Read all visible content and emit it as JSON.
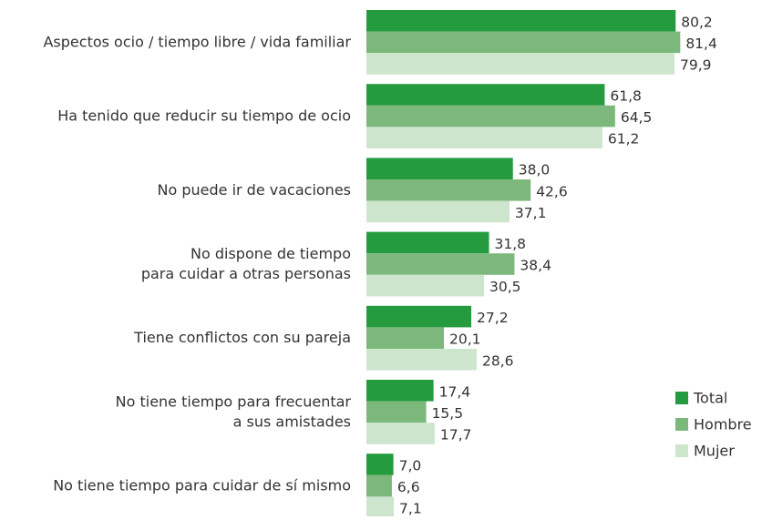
{
  "chart_data": {
    "type": "bar",
    "orientation": "horizontal",
    "categories": [
      "Aspectos ocio / tiempo libre / vida familiar",
      "Ha tenido que reducir su tiempo de ocio",
      "No puede ir de vacaciones",
      "No dispone de tiempo\npara cuidar a otras personas",
      "Tiene conflictos con su pareja",
      "No tiene tiempo para frecuentar\na sus amistades",
      "No tiene tiempo para cuidar de sí mismo"
    ],
    "series": [
      {
        "name": "Total",
        "color": "#239b3e",
        "values": [
          80.2,
          61.8,
          38.0,
          31.8,
          27.2,
          17.4,
          7.0
        ],
        "value_labels": [
          "80,2",
          "61,8",
          "38,0",
          "31,8",
          "27,2",
          "17,4",
          "7,0"
        ]
      },
      {
        "name": "Hombre",
        "color": "#7cb87c",
        "values": [
          81.4,
          64.5,
          42.6,
          38.4,
          20.1,
          15.5,
          6.6
        ],
        "value_labels": [
          "81,4",
          "64,5",
          "42,6",
          "38,4",
          "20,1",
          "15,5",
          "6,6"
        ]
      },
      {
        "name": "Mujer",
        "color": "#cde5cd",
        "values": [
          79.9,
          61.2,
          37.1,
          30.5,
          28.6,
          17.7,
          7.1
        ],
        "value_labels": [
          "79,9",
          "61,2",
          "37,1",
          "30,5",
          "28,6",
          "17,7",
          "7,1"
        ]
      }
    ],
    "xlim": [
      0,
      100
    ],
    "legend": "lower right"
  }
}
